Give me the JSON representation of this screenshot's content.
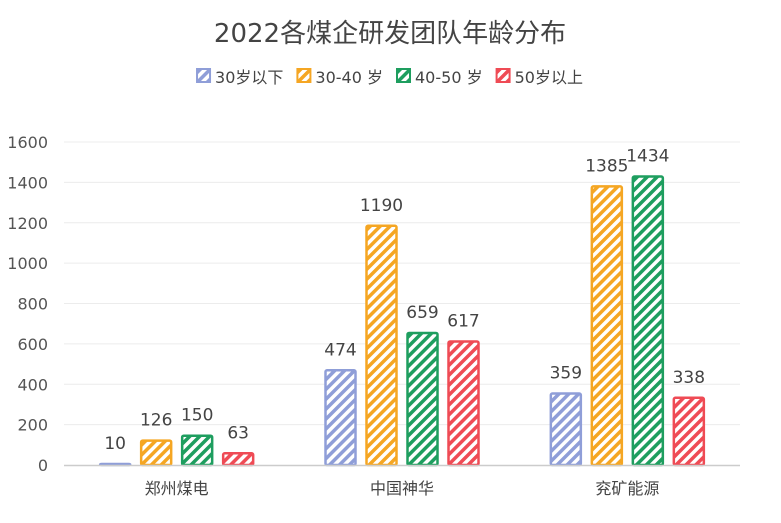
{
  "chart_data": {
    "type": "bar",
    "title": "2022各煤企研发团队年龄分布",
    "xlabel": "",
    "ylabel": "",
    "categories": [
      "郑州煤电",
      "中国神华",
      "兖矿能源"
    ],
    "series": [
      {
        "name": "30岁以下",
        "color": "#8F9ED8",
        "values": [
          10,
          474,
          359
        ]
      },
      {
        "name": "30-40 岁",
        "color": "#F5A623",
        "values": [
          126,
          1190,
          1385
        ]
      },
      {
        "name": "40-50 岁",
        "color": "#1E9E5F",
        "values": [
          150,
          659,
          1434
        ]
      },
      {
        "name": "50岁以上",
        "color": "#EF4B55",
        "values": [
          63,
          617,
          338
        ]
      }
    ],
    "yticks": [
      "0",
      "200",
      "400",
      "600",
      "800",
      "1000",
      "1200",
      "1400",
      "1600"
    ],
    "ylim": [
      0,
      1600
    ],
    "grid": true,
    "legend_position": "top",
    "bar_style": "diagonal-hatched with solid outline"
  }
}
